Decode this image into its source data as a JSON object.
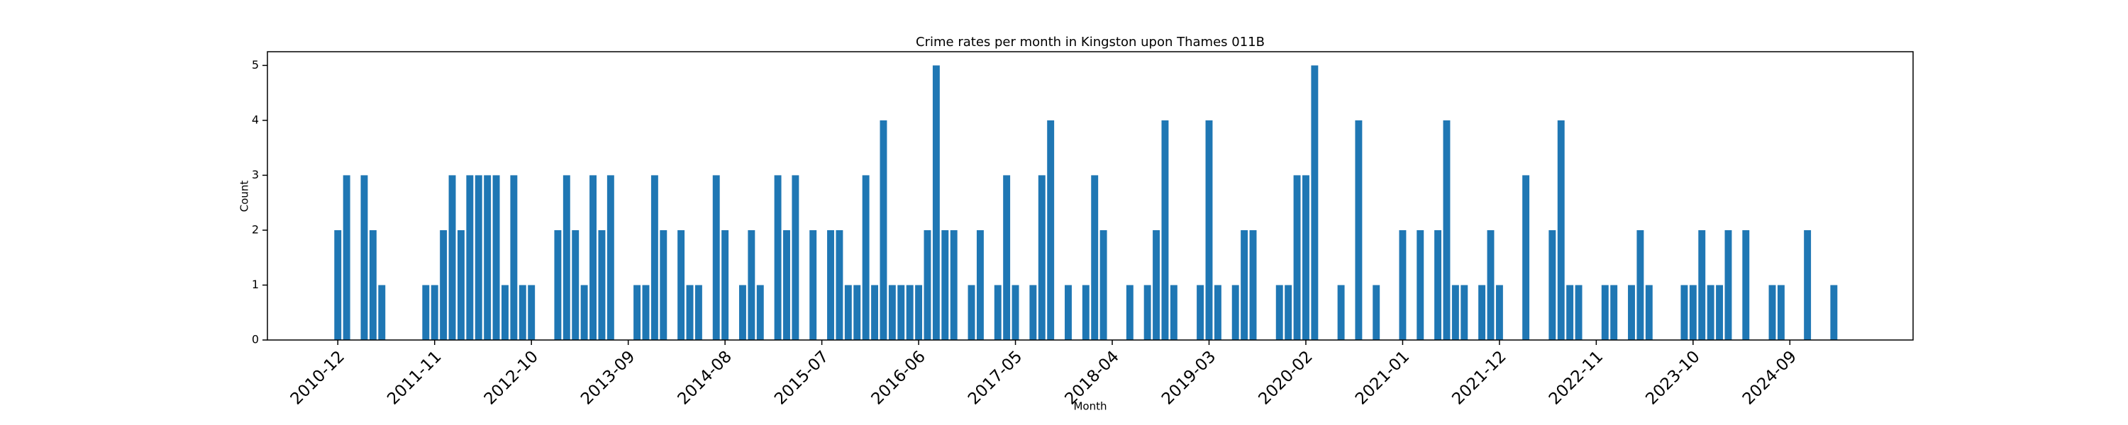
{
  "chart_data": {
    "type": "bar",
    "title": "Crime rates per month in Kingston upon Thames 011B",
    "xlabel": "Month",
    "ylabel": "Count",
    "color": "#1f77b4",
    "x": [
      "2010-12",
      "2011-01",
      "2011-03",
      "2011-04",
      "2011-05",
      "2011-10",
      "2011-11",
      "2011-12",
      "2012-01",
      "2012-02",
      "2012-03",
      "2012-04",
      "2012-05",
      "2012-06",
      "2012-07",
      "2012-08",
      "2012-09",
      "2012-10",
      "2013-01",
      "2013-02",
      "2013-03",
      "2013-04",
      "2013-05",
      "2013-06",
      "2013-07",
      "2013-10",
      "2013-11",
      "2013-12",
      "2014-01",
      "2014-03",
      "2014-04",
      "2014-05",
      "2014-07",
      "2014-08",
      "2014-10",
      "2014-11",
      "2014-12",
      "2015-02",
      "2015-03",
      "2015-04",
      "2015-06",
      "2015-08",
      "2015-09",
      "2015-10",
      "2015-11",
      "2015-12",
      "2016-01",
      "2016-02",
      "2016-03",
      "2016-04",
      "2016-05",
      "2016-06",
      "2016-07",
      "2016-08",
      "2016-09",
      "2016-10",
      "2016-12",
      "2017-01",
      "2017-03",
      "2017-04",
      "2017-05",
      "2017-07",
      "2017-08",
      "2017-09",
      "2017-11",
      "2018-01",
      "2018-02",
      "2018-03",
      "2018-06",
      "2018-08",
      "2018-09",
      "2018-10",
      "2018-11",
      "2019-02",
      "2019-03",
      "2019-04",
      "2019-06",
      "2019-07",
      "2019-08",
      "2019-11",
      "2019-12",
      "2020-01",
      "2020-02",
      "2020-03",
      "2020-06",
      "2020-08",
      "2020-10",
      "2021-01",
      "2021-03",
      "2021-05",
      "2021-06",
      "2021-07",
      "2021-08",
      "2021-10",
      "2021-11",
      "2021-12",
      "2022-03",
      "2022-06",
      "2022-07",
      "2022-08",
      "2022-09",
      "2022-12",
      "2023-01",
      "2023-03",
      "2023-04",
      "2023-05",
      "2023-09",
      "2023-10",
      "2023-11",
      "2023-12",
      "2024-01",
      "2024-02",
      "2024-04",
      "2024-07",
      "2024-08",
      "2024-11",
      "2025-02"
    ],
    "values": [
      2,
      3,
      3,
      2,
      1,
      1,
      1,
      2,
      3,
      2,
      3,
      3,
      3,
      3,
      1,
      3,
      1,
      1,
      2,
      3,
      2,
      1,
      3,
      2,
      3,
      1,
      1,
      3,
      2,
      2,
      1,
      1,
      3,
      2,
      1,
      2,
      1,
      3,
      2,
      3,
      2,
      2,
      2,
      1,
      1,
      3,
      1,
      4,
      1,
      1,
      1,
      1,
      2,
      5,
      2,
      2,
      1,
      2,
      1,
      3,
      1,
      1,
      3,
      4,
      1,
      1,
      3,
      2,
      1,
      1,
      2,
      4,
      1,
      1,
      4,
      1,
      1,
      2,
      2,
      1,
      1,
      3,
      3,
      5,
      1,
      4,
      1,
      2,
      2,
      2,
      4,
      1,
      1,
      1,
      2,
      1,
      3,
      2,
      4,
      1,
      1,
      1,
      1,
      1,
      2,
      1,
      1,
      1,
      2,
      1,
      1,
      2,
      2,
      1,
      1,
      2,
      1
    ],
    "xlim": [
      "2010-04",
      "2025-11"
    ],
    "xticks": [
      "2010-12",
      "2011-11",
      "2012-10",
      "2013-09",
      "2014-08",
      "2015-07",
      "2016-06",
      "2017-05",
      "2018-04",
      "2019-03",
      "2020-02",
      "2021-01",
      "2021-12",
      "2022-11",
      "2023-10",
      "2024-09"
    ],
    "ylim": [
      0,
      5.25
    ],
    "yticks": [
      0,
      1,
      2,
      3,
      4,
      5
    ]
  }
}
